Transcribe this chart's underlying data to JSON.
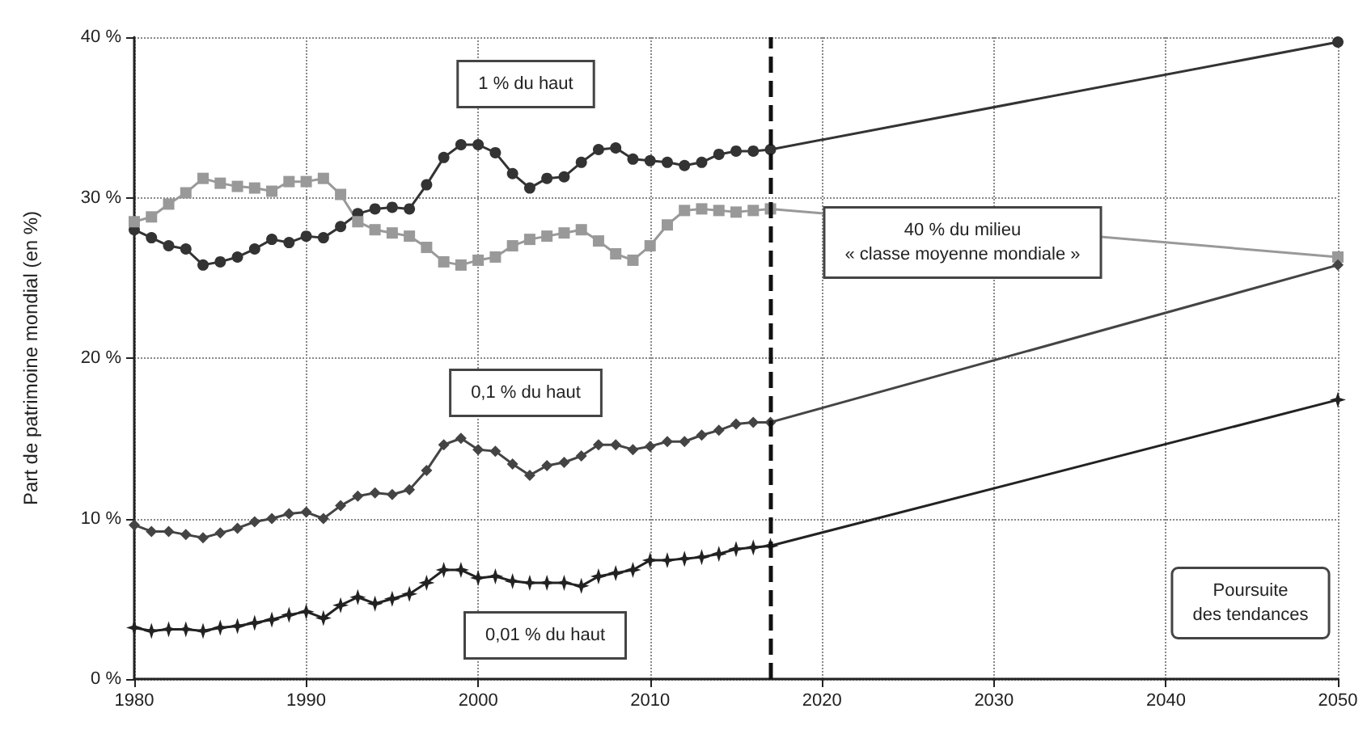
{
  "chart_data": {
    "type": "line",
    "ylabel": "Part de patrimoine mondial (en %)",
    "x": [
      1980,
      1981,
      1982,
      1983,
      1984,
      1985,
      1986,
      1987,
      1988,
      1989,
      1990,
      1991,
      1992,
      1993,
      1994,
      1995,
      1996,
      1997,
      1998,
      1999,
      2000,
      2001,
      2002,
      2003,
      2004,
      2005,
      2006,
      2007,
      2008,
      2009,
      2010,
      2011,
      2012,
      2013,
      2014,
      2015,
      2016,
      2017,
      2050
    ],
    "series": [
      {
        "name": "1 % du haut",
        "color": "#333333",
        "marker": "circle",
        "values": [
          28,
          27.5,
          27,
          26.8,
          25.8,
          26,
          26.3,
          26.8,
          27.4,
          27.2,
          27.6,
          27.5,
          28.2,
          29,
          29.3,
          29.4,
          29.3,
          30.8,
          32.5,
          33.3,
          33.3,
          32.8,
          31.5,
          30.6,
          31.2,
          31.3,
          32.2,
          33,
          33.1,
          32.4,
          32.3,
          32.2,
          32,
          32.2,
          32.7,
          32.9,
          32.9,
          33,
          39.7
        ]
      },
      {
        "name": "40 % du milieu\n« classe moyenne mondiale »",
        "color": "#999999",
        "marker": "square",
        "values": [
          28.5,
          28.8,
          29.6,
          30.3,
          31.2,
          30.9,
          30.7,
          30.6,
          30.4,
          31,
          31,
          31.2,
          30.2,
          28.5,
          28,
          27.8,
          27.6,
          26.9,
          26,
          25.8,
          26.1,
          26.3,
          27,
          27.4,
          27.6,
          27.8,
          28,
          27.3,
          26.5,
          26.1,
          27,
          28.3,
          29.2,
          29.3,
          29.2,
          29.1,
          29.2,
          29.3,
          26.3
        ]
      },
      {
        "name": "0,1 % du haut",
        "color": "#444444",
        "marker": "diamond",
        "values": [
          9.6,
          9.2,
          9.2,
          9,
          8.8,
          9.1,
          9.4,
          9.8,
          10,
          10.3,
          10.4,
          10,
          10.8,
          11.4,
          11.6,
          11.5,
          11.8,
          13,
          14.6,
          15,
          14.3,
          14.2,
          13.4,
          12.7,
          13.3,
          13.5,
          13.9,
          14.6,
          14.6,
          14.3,
          14.5,
          14.8,
          14.8,
          15.2,
          15.5,
          15.9,
          16,
          16,
          25.8
        ]
      },
      {
        "name": "0,01 % du haut",
        "color": "#222222",
        "marker": "star",
        "values": [
          3.2,
          3,
          3.1,
          3.1,
          3,
          3.2,
          3.3,
          3.5,
          3.7,
          4,
          4.2,
          3.8,
          4.6,
          5.1,
          4.7,
          5,
          5.3,
          6,
          6.8,
          6.8,
          6.3,
          6.4,
          6.1,
          6,
          6,
          6,
          5.8,
          6.4,
          6.6,
          6.8,
          7.4,
          7.4,
          7.5,
          7.6,
          7.8,
          8.1,
          8.2,
          8.3,
          17.4
        ]
      }
    ],
    "xlim": [
      1980,
      2050
    ],
    "xticks": [
      1980,
      1990,
      2000,
      2010,
      2020,
      2030,
      2040,
      2050
    ],
    "ylim": [
      0,
      40
    ],
    "yticks": [
      {
        "value": 0,
        "label": "0 %"
      },
      {
        "value": 10,
        "label": "10 %"
      },
      {
        "value": 20,
        "label": "20 %"
      },
      {
        "value": 30,
        "label": "30 %"
      },
      {
        "value": 40,
        "label": "40 %"
      }
    ],
    "grid": true,
    "ref_lines": [
      {
        "axis": "x",
        "value": 2017,
        "line_style": "dashed",
        "color": "#111111"
      }
    ],
    "annotations": [
      "Poursuite\ndes tendances"
    ]
  }
}
